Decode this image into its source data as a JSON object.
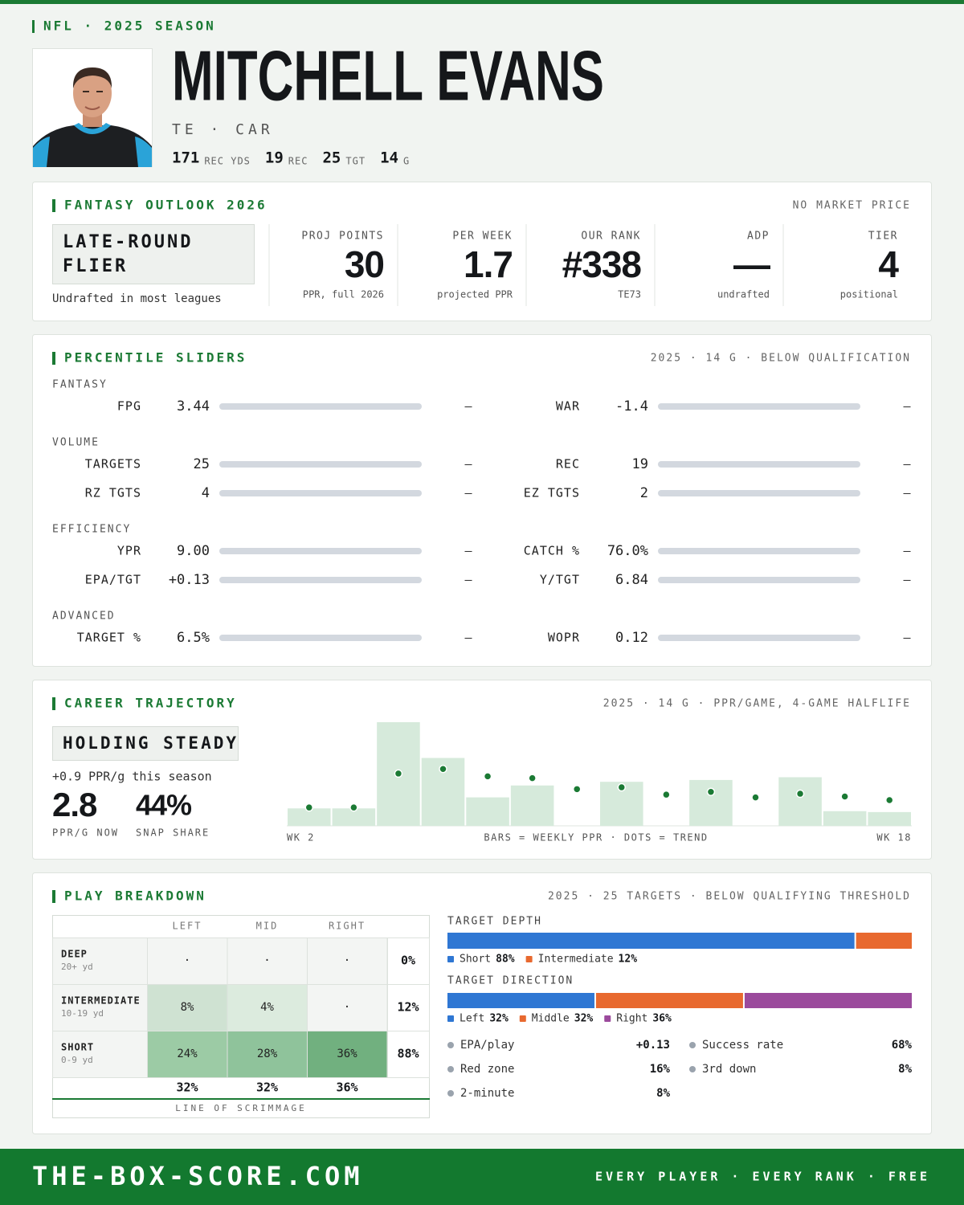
{
  "header": {
    "league": "NFL · 2025 SEASON",
    "name": "MITCHELL EVANS",
    "position": "TE · CAR",
    "stats": [
      {
        "value": 171,
        "label": "REC YDS"
      },
      {
        "value": 19,
        "label": "REC"
      },
      {
        "value": 25,
        "label": "TGT"
      },
      {
        "value": 14,
        "label": "G"
      }
    ]
  },
  "outlook": {
    "title": "FANTASY OUTLOOK 2026",
    "note": "NO MARKET PRICE",
    "verdict": [
      "LATE-ROUND",
      "FLIER"
    ],
    "caption": "Undrafted in most leagues",
    "metrics": [
      {
        "label": "PROJ POINTS",
        "value": 30,
        "sub": "PPR, full 2026"
      },
      {
        "label": "PER WEEK",
        "value": 1.7,
        "sub": "projected PPR"
      },
      {
        "label": "OUR RANK",
        "value": "#338",
        "sub": "TE73"
      },
      {
        "label": "ADP",
        "value": "—",
        "sub": "undrafted"
      },
      {
        "label": "TIER",
        "value": 4,
        "sub": "positional"
      }
    ]
  },
  "sliders": {
    "title": "PERCENTILE SLIDERS",
    "note": "2025 · 14 G · BELOW QUALIFICATION",
    "groups": [
      {
        "name": "FANTASY",
        "rows": [
          {
            "label": "FPG",
            "value": 3.44,
            "pct": "—"
          },
          {
            "label": "WAR",
            "value": -1.4,
            "pct": "—"
          }
        ]
      },
      {
        "name": "VOLUME",
        "rows": [
          {
            "label": "TARGETS",
            "value": 25,
            "pct": "—"
          },
          {
            "label": "REC",
            "value": 19,
            "pct": "—"
          },
          {
            "label": "RZ TGTS",
            "value": 4,
            "pct": "—"
          },
          {
            "label": "EZ TGTS",
            "value": 2,
            "pct": "—"
          }
        ]
      },
      {
        "name": "EFFICIENCY",
        "rows": [
          {
            "label": "YPR",
            "value": "9.00",
            "pct": "—"
          },
          {
            "label": "CATCH %",
            "value": "76.0%",
            "pct": "—"
          },
          {
            "label": "EPA/TGT",
            "value": "+0.13",
            "pct": "—"
          },
          {
            "label": "Y/TGT",
            "value": 6.84,
            "pct": "—"
          }
        ]
      },
      {
        "name": "ADVANCED",
        "rows": [
          {
            "label": "TARGET %",
            "value": "6.5%",
            "pct": "—"
          },
          {
            "label": "WOPR",
            "value": 0.12,
            "pct": "—"
          }
        ]
      }
    ]
  },
  "trajectory": {
    "title": "CAREER TRAJECTORY",
    "note": "2025 · 14 G · PPR/GAME, 4-GAME HALFLIFE",
    "verdict": "HOLDING STEADY",
    "delta": "+0.9 PPR/g this season",
    "stats": [
      {
        "value": 2.8,
        "label": "PPR/G NOW"
      },
      {
        "value": "44%",
        "label": "SNAP SHARE"
      }
    ],
    "chart": {
      "type": "bar",
      "categories": [
        "WK 2",
        null,
        null,
        null,
        null,
        null,
        null,
        null,
        null,
        null,
        null,
        null,
        null,
        "WK 18"
      ],
      "bars": {
        "color": "#d6eadb",
        "values": [
          1.9,
          1.9,
          11.3,
          7.4,
          3.1,
          4.4,
          0,
          4.8,
          0,
          5.0,
          0,
          5.3,
          1.6,
          1.5
        ]
      },
      "dots": {
        "color": "#1b7a34",
        "values": [
          2.0,
          2.0,
          5.7,
          6.2,
          5.4,
          5.2,
          4.0,
          4.2,
          3.4,
          3.7,
          3.1,
          3.5,
          3.2,
          2.8
        ]
      },
      "ylim": [
        0,
        12
      ],
      "legend": "BARS = WEEKLY PPR · DOTS = TREND"
    }
  },
  "breakdown": {
    "title": "PLAY BREAKDOWN",
    "note": "2025 · 25 TARGETS · BELOW QUALIFYING THRESHOLD",
    "grid": {
      "columns": [
        "LEFT",
        "MID",
        "RIGHT"
      ],
      "rows": [
        {
          "label": "DEEP",
          "sub": "20+ yd",
          "cells": [
            "·",
            "·",
            "·"
          ],
          "fills": [
            "#f3f5f3",
            "#f3f5f3",
            "#f3f5f3"
          ],
          "total": "0%"
        },
        {
          "label": "INTERMEDIATE",
          "sub": "10-19 yd",
          "cells": [
            "8%",
            "4%",
            "·"
          ],
          "fills": [
            "#cfe2d2",
            "#dcebde",
            "#f3f5f3"
          ],
          "total": "12%"
        },
        {
          "label": "SHORT",
          "sub": "0-9 yd",
          "cells": [
            "24%",
            "28%",
            "36%"
          ],
          "fills": [
            "#9ccba5",
            "#8fc39b",
            "#71b07f"
          ],
          "total": "88%"
        }
      ],
      "totals": [
        "32%",
        "32%",
        "36%"
      ],
      "caption": "LINE OF SCRIMMAGE"
    },
    "depth": {
      "title": "TARGET DEPTH",
      "segments": [
        {
          "name": "Short",
          "value": 88,
          "label": "88%",
          "color": "#2f77d3"
        },
        {
          "name": "Intermediate",
          "value": 12,
          "label": "12%",
          "color": "#e8692f"
        }
      ]
    },
    "direction": {
      "title": "TARGET DIRECTION",
      "segments": [
        {
          "name": "Left",
          "value": 32,
          "label": "32%",
          "color": "#2f77d3"
        },
        {
          "name": "Middle",
          "value": 32,
          "label": "32%",
          "color": "#e8692f"
        },
        {
          "name": "Right",
          "value": 36,
          "label": "36%",
          "color": "#9b4a9c"
        }
      ]
    },
    "stats": [
      {
        "label": "EPA/play",
        "value": "+0.13"
      },
      {
        "label": "Success rate",
        "value": "68%"
      },
      {
        "label": "Red zone",
        "value": "16%"
      },
      {
        "label": "3rd down",
        "value": "8%"
      },
      {
        "label": "2-minute",
        "value": "8%"
      }
    ]
  },
  "footer": {
    "site": "THE-BOX-SCORE.COM",
    "tagline": "EVERY PLAYER · EVERY RANK · FREE"
  }
}
